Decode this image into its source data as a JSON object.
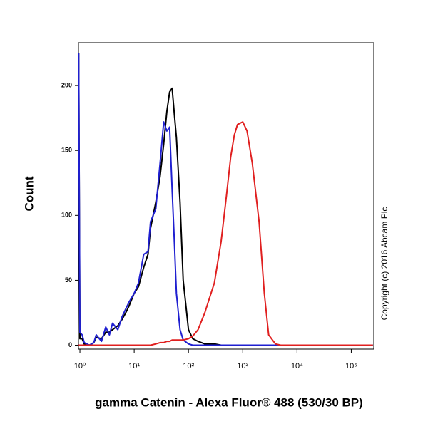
{
  "chart_data": {
    "type": "line",
    "x_label": "gamma Catenin - Alexa Fluor® 488 (530/30 BP)",
    "y_label": "Count",
    "annotation": "Copyright (c) 2016 Abcam Plc",
    "log_x": true,
    "x": [
      0.95,
      1,
      1.1,
      1.2,
      1.5,
      1.8,
      2,
      2.5,
      3,
      3.5,
      4,
      5,
      6,
      7,
      8,
      10,
      12,
      15,
      18,
      20,
      25,
      30,
      35,
      40,
      45,
      50,
      55,
      60,
      70,
      80,
      100,
      120,
      150,
      200,
      300,
      400,
      500,
      600,
      700,
      800,
      1000,
      1200,
      1500,
      2000,
      2500,
      3000,
      4000,
      5000,
      7000,
      10000,
      30000,
      100000,
      250000
    ],
    "series": [
      {
        "color": "#000000",
        "values": [
          225,
          5,
          5,
          1,
          0,
          2,
          6,
          5,
          10,
          10,
          12,
          15,
          20,
          25,
          30,
          40,
          45,
          60,
          70,
          90,
          110,
          130,
          155,
          180,
          195,
          198,
          178,
          160,
          110,
          50,
          12,
          5,
          3,
          1,
          1,
          0,
          0,
          0,
          0,
          0,
          0,
          0,
          0,
          0,
          0,
          0,
          0,
          0,
          0,
          0,
          0,
          0,
          0
        ]
      },
      {
        "color": "#1f1fd0",
        "values": [
          225,
          10,
          8,
          2,
          0,
          2,
          8,
          3,
          14,
          8,
          17,
          12,
          22,
          28,
          33,
          40,
          48,
          70,
          72,
          95,
          105,
          140,
          172,
          165,
          168,
          120,
          80,
          40,
          12,
          4,
          1,
          0,
          0,
          0,
          0,
          0,
          0,
          0,
          0,
          0,
          0,
          0,
          0,
          0,
          0,
          0,
          0,
          0,
          0,
          0,
          0,
          0,
          0
        ]
      },
      {
        "color": "#e02020",
        "values": [
          0,
          0,
          0,
          0,
          0,
          0,
          0,
          0,
          0,
          0,
          0,
          0,
          0,
          0,
          0,
          0,
          0,
          0,
          0,
          0,
          1,
          2,
          2,
          3,
          3,
          4,
          4,
          4,
          4,
          4,
          5,
          7,
          12,
          25,
          48,
          80,
          115,
          145,
          162,
          170,
          172,
          165,
          140,
          95,
          40,
          8,
          1,
          0,
          0,
          0,
          0,
          0,
          0
        ]
      }
    ],
    "xlim": [
      0.94,
      260000
    ],
    "xticks": [
      {
        "value": 1,
        "label": "10⁰"
      },
      {
        "value": 10,
        "label": "10¹"
      },
      {
        "value": 100,
        "label": "10²"
      },
      {
        "value": 1000,
        "label": "10³"
      },
      {
        "value": 10000,
        "label": "10⁴"
      },
      {
        "value": 100000,
        "label": "10⁵"
      }
    ],
    "ylim": [
      -3,
      233
    ],
    "yticks": [
      0,
      50,
      100,
      150,
      200
    ]
  }
}
